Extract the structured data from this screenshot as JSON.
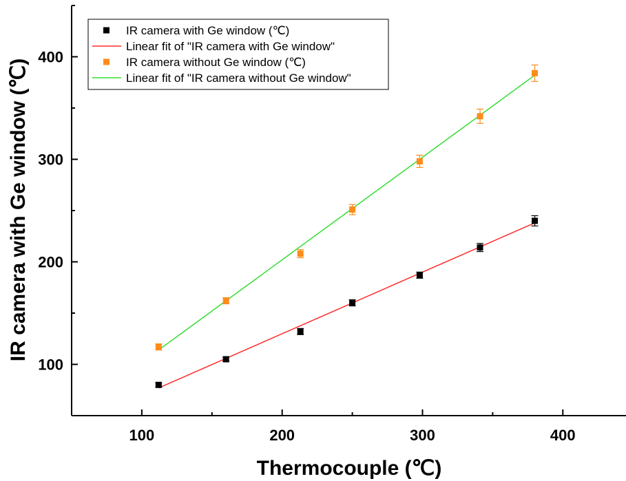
{
  "chart_data": {
    "type": "scatter",
    "xlabel": "Thermocouple (℃)",
    "ylabel": "IR camera with Ge window (℃)",
    "xlim": [
      50,
      445
    ],
    "ylim": [
      50,
      450
    ],
    "xticks": [
      100,
      200,
      300,
      400
    ],
    "yticks": [
      100,
      200,
      300,
      400
    ],
    "legend_position": "top-left",
    "series": [
      {
        "name": "IR camera with Ge window (℃)",
        "kind": "points",
        "color": "#000000",
        "x": [
          112,
          160,
          213,
          250,
          298,
          341,
          380
        ],
        "y": [
          80,
          105,
          132,
          160,
          187,
          214,
          240
        ],
        "err": [
          2,
          2,
          3,
          3,
          3,
          4,
          5
        ]
      },
      {
        "name": "Linear fit of \"IR camera with Ge window\"",
        "kind": "line",
        "color": "#ff2a2a",
        "x": [
          112,
          380
        ],
        "y": [
          77,
          238
        ]
      },
      {
        "name": "IR camera without Ge window (℃)",
        "kind": "points",
        "color": "#ff8c1a",
        "x": [
          112,
          160,
          213,
          250,
          298,
          341,
          380
        ],
        "y": [
          117,
          162,
          208,
          251,
          298,
          342,
          384
        ],
        "err": [
          3,
          3,
          4,
          5,
          6,
          7,
          8
        ]
      },
      {
        "name": "Linear fit of \"IR camera without Ge window\"",
        "kind": "line",
        "color": "#33dd33",
        "x": [
          112,
          380
        ],
        "y": [
          114,
          382
        ]
      }
    ]
  }
}
